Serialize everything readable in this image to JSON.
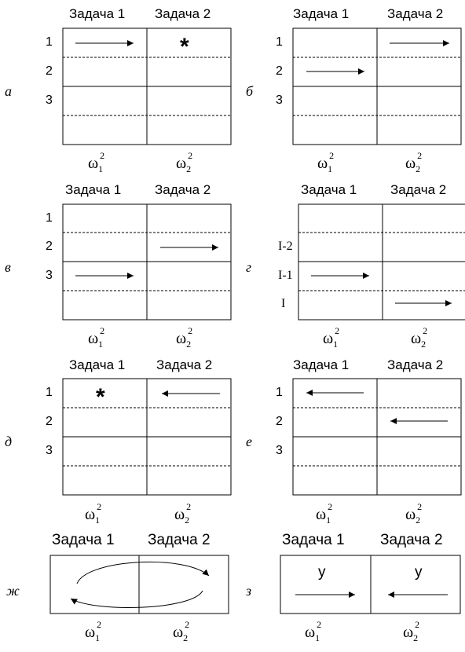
{
  "header_task1": "Задача 1",
  "header_task2": "Задача 2",
  "omega_symbol": "ω",
  "omega_sub1": "1",
  "omega_sub2": "2",
  "omega_sup": "2",
  "star_symbol": "*",
  "panels": {
    "a": {
      "label": "а"
    },
    "b": {
      "label": "б"
    },
    "v": {
      "label": "в"
    },
    "g": {
      "label": "г"
    },
    "d": {
      "label": "д"
    },
    "e": {
      "label": "е"
    },
    "zh": {
      "label": "ж"
    },
    "z": {
      "label": "з"
    }
  },
  "rows_numeric": [
    "1",
    "2",
    "3"
  ],
  "rows_g": [
    "I-2",
    "I-1",
    "I"
  ],
  "y_label": "у",
  "colors": {
    "line": "#000000",
    "background": "#ffffff"
  }
}
